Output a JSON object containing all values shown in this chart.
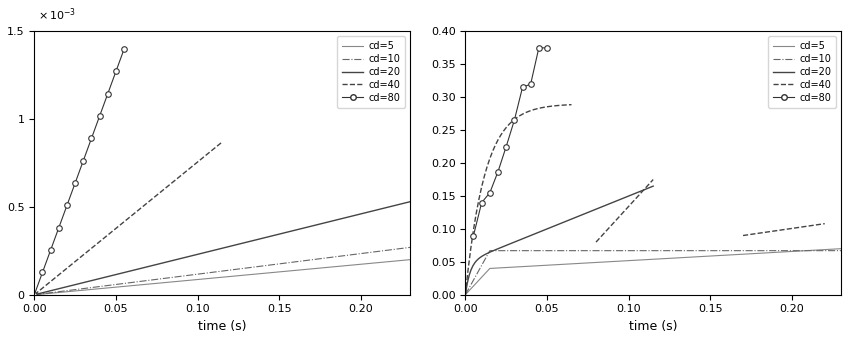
{
  "xlabel": "time (s)",
  "xlim": [
    0,
    0.23
  ],
  "left_ylim": [
    0,
    0.0015
  ],
  "right_ylim": [
    0,
    0.4
  ],
  "legend_labels": [
    "cd=5",
    "cd=10",
    "cd=20",
    "cd=40",
    "cd=80"
  ],
  "left_yticks": [
    0,
    0.0005,
    0.001,
    0.0015
  ],
  "left_ytick_labels": [
    "0",
    "0.5",
    "1",
    "1.5"
  ],
  "right_yticks": [
    0,
    0.05,
    0.1,
    0.15,
    0.2,
    0.25,
    0.3,
    0.35,
    0.4
  ],
  "xticks": [
    0,
    0.05,
    0.1,
    0.15,
    0.2
  ]
}
